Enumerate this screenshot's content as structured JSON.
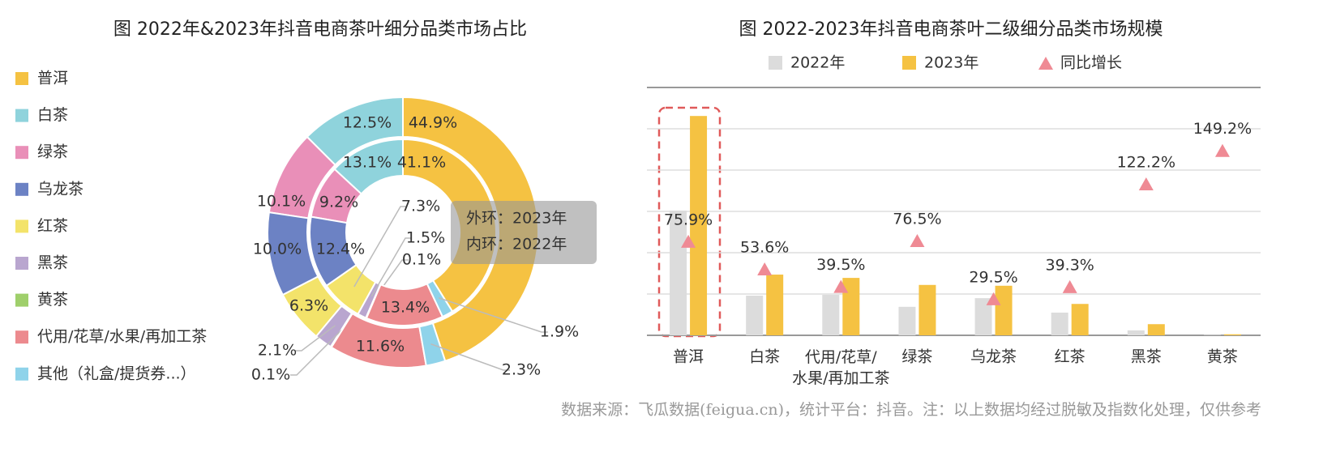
{
  "chart_data": [
    {
      "type": "pie",
      "title": "图 2022年&2023年抖音电商茶叶细分品类市场占比",
      "categories": [
        "普洱",
        "白茶",
        "绿茶",
        "乌龙茶",
        "红茶",
        "黑茶",
        "黄茶",
        "代用/花草/水果/再加工茶",
        "其他（礼盒/提货券...）"
      ],
      "colors": [
        "#f5c242",
        "#8fd3dc",
        "#e98fb8",
        "#6c82c4",
        "#f3e36a",
        "#b9a6cf",
        "#9fcf6b",
        "#ec8a8e",
        "#8fd3ea"
      ],
      "series": [
        {
          "values": [
            44.9,
            12.5,
            10.1,
            10.0,
            6.3,
            2.1,
            0.1,
            11.6,
            2.3
          ],
          "value_labels": [
            "44.9%",
            "12.5%",
            "10.1%",
            "10.0%",
            "6.3%",
            "2.1%",
            "0.1%",
            "11.6%",
            "2.3%"
          ]
        },
        {
          "values": [
            41.1,
            13.1,
            9.2,
            12.4,
            7.3,
            1.5,
            0.1,
            13.4,
            1.9
          ],
          "value_labels": [
            "41.1%",
            "13.1%",
            "9.2%",
            "12.4%",
            "7.3%",
            "1.5%",
            "0.1%",
            "13.4%",
            "1.9%"
          ]
        }
      ],
      "annotations": [
        "外环：2023年",
        "内环：2022年"
      ]
    },
    {
      "type": "bar",
      "title": "图 2022-2023年抖音电商茶叶二级细分品类市场规模",
      "categories": [
        "普洱",
        "白茶",
        "代用/花草/水果/再加工茶",
        "绿茶",
        "乌龙茶",
        "红茶",
        "黑茶",
        "黄茶"
      ],
      "series": [
        {
          "name": "2022年",
          "color": "#dcdcdc",
          "values": [
            3.02,
            0.96,
            0.98,
            0.69,
            0.9,
            0.55,
            0.12,
            0.01
          ]
        },
        {
          "name": "2023年",
          "color": "#f5c242",
          "values": [
            5.31,
            1.47,
            1.39,
            1.22,
            1.2,
            0.76,
            0.27,
            0.025
          ]
        },
        {
          "name": "同比增长",
          "color": "#ef8a94",
          "type": "scatter",
          "axis": "y2",
          "values": [
            75.9,
            53.6,
            39.5,
            76.5,
            29.5,
            39.3,
            122.2,
            149.2
          ],
          "value_labels": [
            "75.9%",
            "53.6%",
            "39.5%",
            "76.5%",
            "29.5%",
            "39.3%",
            "122.2%",
            "149.2%"
          ]
        }
      ],
      "ylim": [
        0,
        6
      ],
      "yticks": [
        0,
        1,
        2,
        3,
        4,
        5,
        6
      ],
      "y2lim": [
        0,
        200
      ],
      "grid": true
    }
  ],
  "source": "数据来源：飞瓜数据(feigua.cn)，统计平台：抖音。注：以上数据均经过脱敏及指数化处理，仅供参考"
}
